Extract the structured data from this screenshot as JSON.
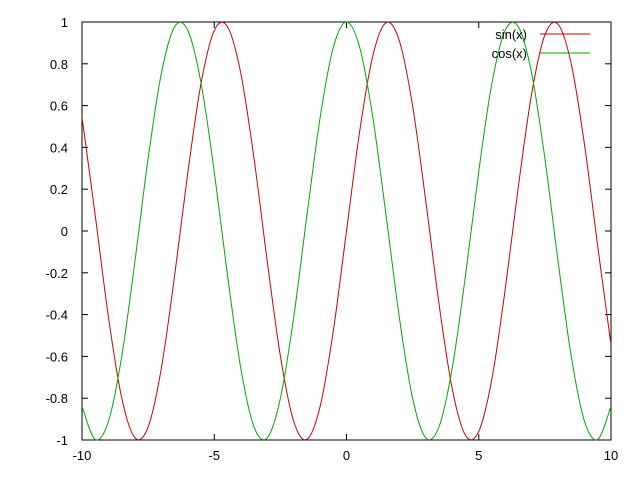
{
  "chart_data": {
    "type": "line",
    "title": "",
    "xlabel": "",
    "ylabel": "",
    "xlim": [
      -10,
      10
    ],
    "ylim": [
      -1,
      1
    ],
    "grid": false,
    "legend_position": "top-right",
    "x_ticks": [
      {
        "value": -10,
        "label": "-10"
      },
      {
        "value": -5,
        "label": "-5"
      },
      {
        "value": 0,
        "label": "0"
      },
      {
        "value": 5,
        "label": "5"
      },
      {
        "value": 10,
        "label": "10"
      }
    ],
    "y_ticks": [
      {
        "value": 1,
        "label": "1"
      },
      {
        "value": 0.8,
        "label": "0.8"
      },
      {
        "value": 0.6,
        "label": "0.6"
      },
      {
        "value": 0.4,
        "label": "0.4"
      },
      {
        "value": 0.2,
        "label": "0.2"
      },
      {
        "value": 0,
        "label": "0"
      },
      {
        "value": -0.2,
        "label": "-0.2"
      },
      {
        "value": -0.4,
        "label": "-0.4"
      },
      {
        "value": -0.6,
        "label": "-0.6"
      },
      {
        "value": -0.8,
        "label": "-0.8"
      },
      {
        "value": -1,
        "label": "-1"
      }
    ],
    "x": [
      -10,
      -9.5,
      -9,
      -8.5,
      -8,
      -7.5,
      -7,
      -6.5,
      -6,
      -5.5,
      -5,
      -4.5,
      -4,
      -3.5,
      -3,
      -2.5,
      -2,
      -1.5,
      -1,
      -0.5,
      0,
      0.5,
      1,
      1.5,
      2,
      2.5,
      3,
      3.5,
      4,
      4.5,
      5,
      5.5,
      6,
      6.5,
      7,
      7.5,
      8,
      8.5,
      9,
      9.5,
      10
    ],
    "series": [
      {
        "name": "sin(x)",
        "color": "#cc0000",
        "values": [
          0.544,
          0.075,
          -0.412,
          -0.798,
          -0.989,
          -0.938,
          -0.657,
          -0.215,
          0.279,
          0.706,
          0.959,
          0.978,
          0.757,
          0.351,
          -0.141,
          -0.598,
          -0.909,
          -0.997,
          -0.841,
          -0.479,
          0.0,
          0.479,
          0.841,
          0.997,
          0.909,
          0.598,
          0.141,
          -0.351,
          -0.757,
          -0.978,
          -0.959,
          -0.706,
          -0.279,
          0.215,
          0.657,
          0.938,
          0.989,
          0.798,
          0.412,
          -0.075,
          -0.544
        ]
      },
      {
        "name": "cos(x)",
        "color": "#00aa00",
        "values": [
          -0.839,
          -0.997,
          -0.911,
          -0.602,
          -0.146,
          0.347,
          0.754,
          0.977,
          0.96,
          0.709,
          0.284,
          -0.211,
          -0.654,
          -0.936,
          -0.99,
          -0.801,
          -0.416,
          0.071,
          0.54,
          0.878,
          1.0,
          0.878,
          0.54,
          0.071,
          -0.416,
          -0.801,
          -0.99,
          -0.936,
          -0.654,
          -0.211,
          0.284,
          0.709,
          0.96,
          0.977,
          0.754,
          0.347,
          -0.146,
          -0.602,
          -0.911,
          -0.997,
          -0.839
        ]
      }
    ]
  }
}
